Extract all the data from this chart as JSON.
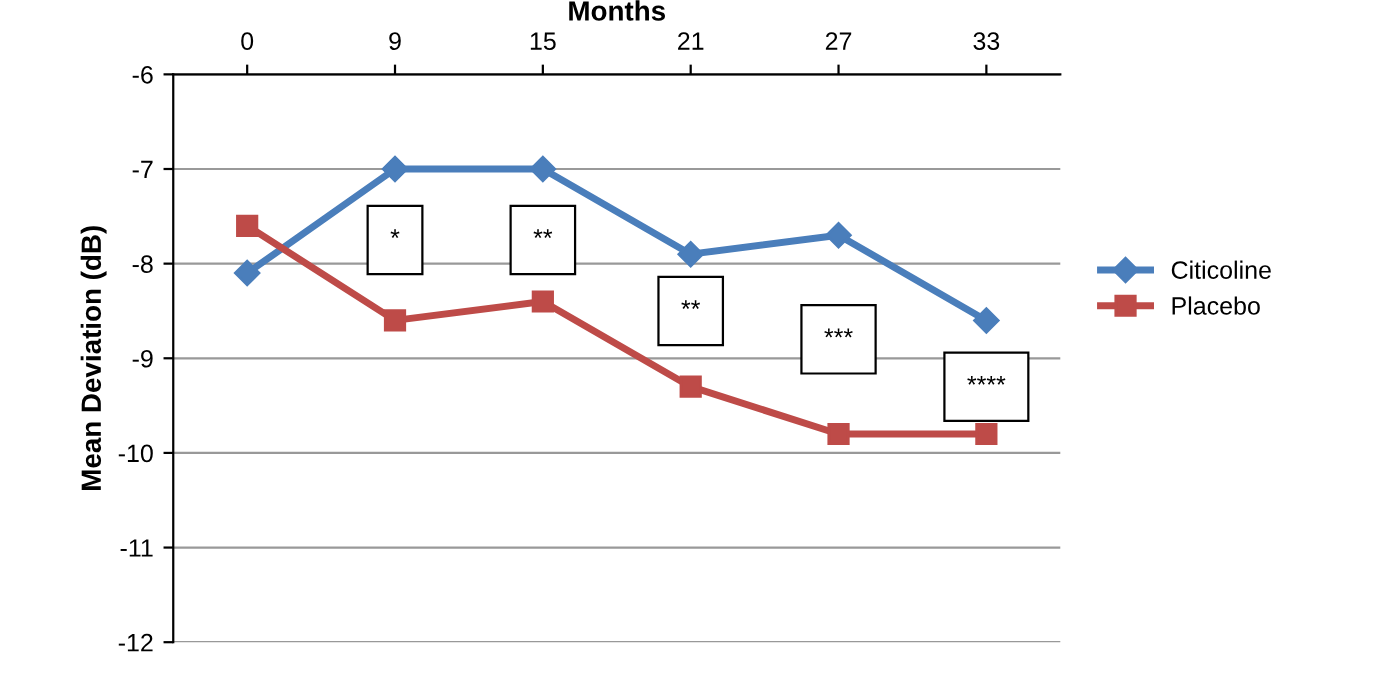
{
  "chart_data": {
    "type": "line",
    "xlabel": "Months",
    "ylabel": "Mean Deviation (dB)",
    "categories": [
      "0",
      "9",
      "15",
      "21",
      "27",
      "33"
    ],
    "series": [
      {
        "name": "Citicoline",
        "color": "#4a7ebb",
        "marker": "diamond",
        "values": [
          -8.1,
          -7.0,
          -7.0,
          -7.9,
          -7.7,
          -8.6
        ]
      },
      {
        "name": "Placebo",
        "color": "#be4b48",
        "marker": "square",
        "values": [
          -7.6,
          -8.6,
          -8.4,
          -9.3,
          -9.8,
          -9.8
        ]
      }
    ],
    "ylim": [
      -12,
      -6
    ],
    "yticks": [
      -12,
      -11,
      -10,
      -9,
      -8,
      -7,
      -6
    ],
    "grid": "y",
    "legend": "right",
    "line_style": "solid",
    "annotations": [
      {
        "text": "*",
        "x": "9",
        "y": -7.75
      },
      {
        "text": "**",
        "x": "15",
        "y": -7.75
      },
      {
        "text": "**",
        "x": "21",
        "y": -8.5
      },
      {
        "text": "***",
        "x": "27",
        "y": -8.8
      },
      {
        "text": "****",
        "x": "33",
        "y": -9.3
      }
    ]
  }
}
